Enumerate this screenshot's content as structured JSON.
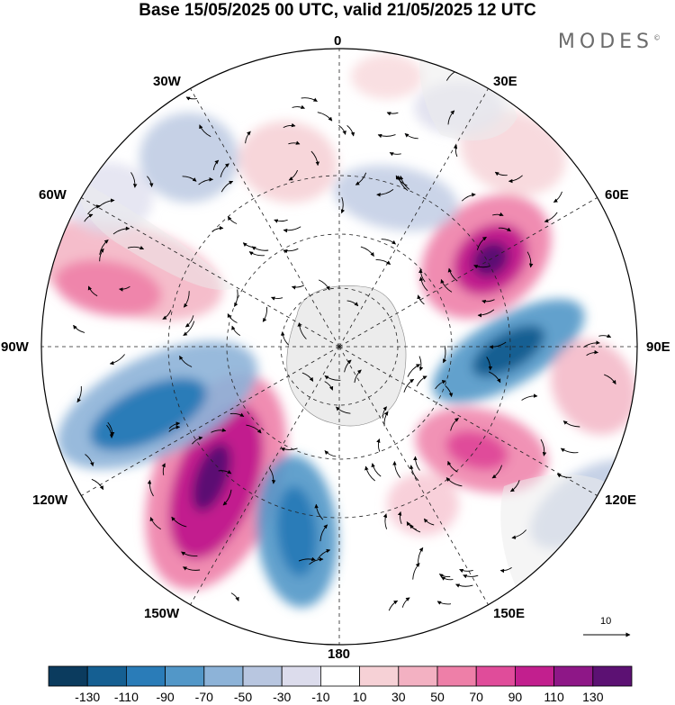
{
  "title": "Base 15/05/2025 00 UTC, valid 21/05/2025 12 UTC",
  "brand": "MODES",
  "brand_mark": "©",
  "longitude_labels": {
    "lon_0": "0",
    "lon_30e": "30E",
    "lon_60e": "60E",
    "lon_90e": "90E",
    "lon_120e": "120E",
    "lon_150e": "150E",
    "lon_180": "180",
    "lon_150w": "150W",
    "lon_120w": "120W",
    "lon_90w": "90W",
    "lon_60w": "60W",
    "lon_30w": "30W"
  },
  "reference_vector": {
    "label": "10"
  },
  "colorbar": {
    "ticks": [
      "-130",
      "-110",
      "-90",
      "-70",
      "-50",
      "-30",
      "-10",
      "10",
      "30",
      "50",
      "70",
      "90",
      "110",
      "130"
    ],
    "colors": [
      "#0b3b5e",
      "#155f92",
      "#2a7cb8",
      "#5297c8",
      "#8db3d8",
      "#b8c6e0",
      "#dcdcec",
      "#ffffff",
      "#f6d1d6",
      "#f3b1c2",
      "#ee7fa8",
      "#e04c9a",
      "#c21f8e",
      "#8e1787",
      "#5c1173"
    ]
  },
  "colors": {
    "land": "#ececec",
    "grid": "#222222"
  }
}
